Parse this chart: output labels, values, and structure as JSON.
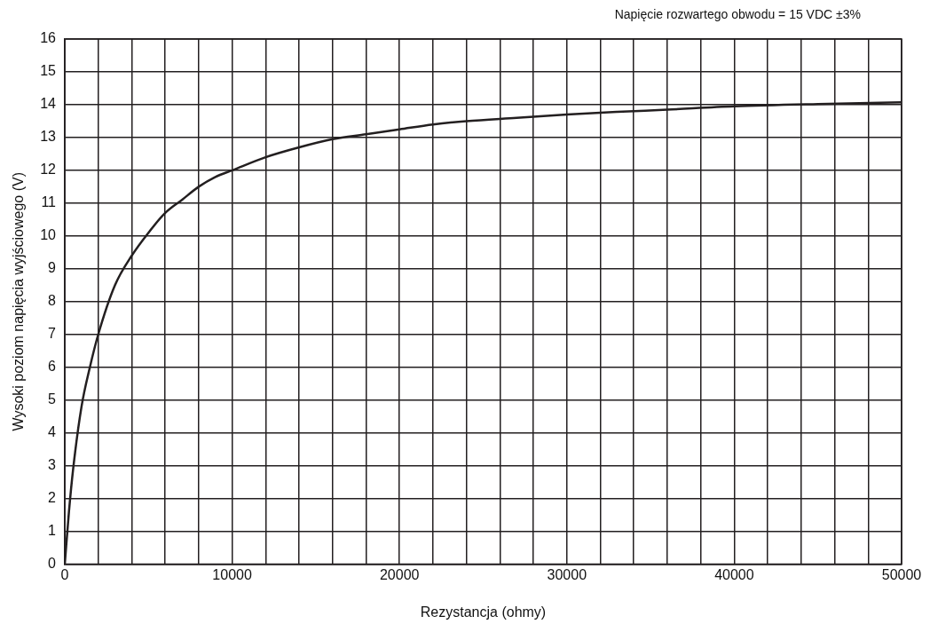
{
  "chart_data": {
    "type": "line",
    "xlabel": "Rezystancja (ohmy)",
    "ylabel": "Wysoki poziom napięcia wyjściowego (V)",
    "annotations": [
      "Napięcie rozwartego obwodu = 15 VDC ±3%"
    ],
    "series": [
      {
        "color": "#231f20",
        "x": [
          0,
          250,
          500,
          1000,
          1500,
          2000,
          3000,
          4000,
          5000,
          6000,
          7000,
          8000,
          9000,
          10000,
          12000,
          14000,
          16000,
          18000,
          20000,
          22000,
          24000,
          27000,
          30000,
          33000,
          36000,
          40000,
          45000,
          50000
        ],
        "values": [
          0,
          1.6,
          2.9,
          4.8,
          6.0,
          7.0,
          8.5,
          9.4,
          10.1,
          10.7,
          11.1,
          11.5,
          11.8,
          12.0,
          12.4,
          12.7,
          12.95,
          13.1,
          13.25,
          13.4,
          13.5,
          13.6,
          13.7,
          13.78,
          13.85,
          13.95,
          14.02,
          14.07
        ]
      }
    ],
    "xlim": [
      0,
      50000
    ],
    "ylim": [
      0,
      16
    ],
    "xticks": [
      0,
      {
        "value": 2000,
        "label": null
      },
      {
        "value": 4000,
        "label": null
      },
      {
        "value": 6000,
        "label": null
      },
      {
        "value": 8000,
        "label": null
      },
      10000,
      {
        "value": 12000,
        "label": null
      },
      {
        "value": 14000,
        "label": null
      },
      {
        "value": 16000,
        "label": null
      },
      {
        "value": 18000,
        "label": null
      },
      20000,
      {
        "value": 22000,
        "label": null
      },
      {
        "value": 24000,
        "label": null
      },
      {
        "value": 26000,
        "label": null
      },
      {
        "value": 28000,
        "label": null
      },
      30000,
      {
        "value": 32000,
        "label": null
      },
      {
        "value": 34000,
        "label": null
      },
      {
        "value": 36000,
        "label": null
      },
      {
        "value": 38000,
        "label": null
      },
      40000,
      {
        "value": 42000,
        "label": null
      },
      {
        "value": 44000,
        "label": null
      },
      {
        "value": 46000,
        "label": null
      },
      {
        "value": 48000,
        "label": null
      },
      50000
    ],
    "yticks": [
      0,
      1,
      2,
      3,
      4,
      5,
      6,
      7,
      8,
      9,
      10,
      11,
      12,
      13,
      14,
      15,
      16
    ],
    "grid": true,
    "legend": false,
    "marker": "none",
    "line_style": "solid"
  }
}
